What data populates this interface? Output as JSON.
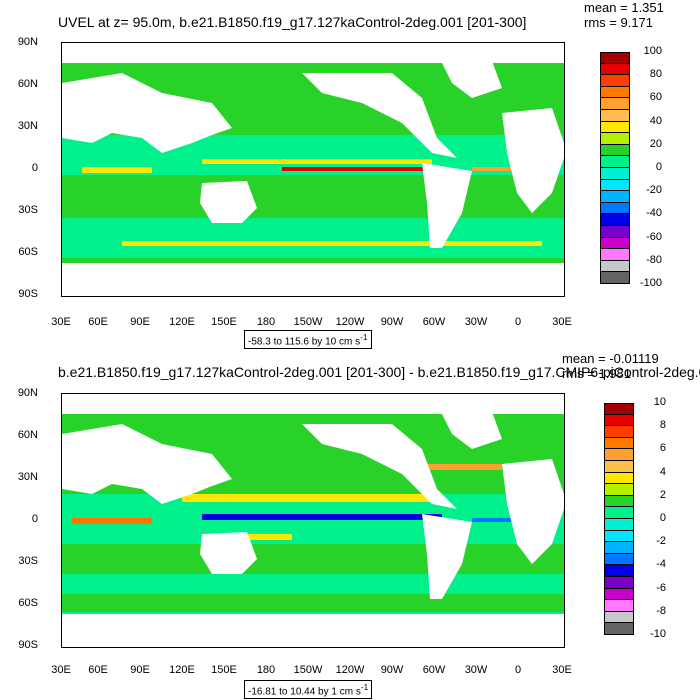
{
  "chart_data": [
    {
      "type": "heatmap",
      "title": "UVEL at z=  95.0m, b.e21.B1850.f19_g17.127kaControl-2deg.001 [201-300]",
      "stats": {
        "mean": "mean = 1.351",
        "rms": "rms = 9.171"
      },
      "range_label": "-58.3 to 115.6 by 10 cm s",
      "range_sup": "-1",
      "y_ticks": [
        "90N",
        "60N",
        "30N",
        "0",
        "30S",
        "60S",
        "90S"
      ],
      "x_ticks": [
        "30E",
        "60E",
        "90E",
        "120E",
        "150E",
        "180",
        "150W",
        "120W",
        "90W",
        "60W",
        "30W",
        "0",
        "30E"
      ],
      "colorbar_labels": [
        "100",
        "80",
        "60",
        "40",
        "20",
        "0",
        "-20",
        "-40",
        "-60",
        "-80",
        "-100"
      ],
      "colorbar_colors": [
        "#a50000",
        "#e60000",
        "#ff3c00",
        "#ff7800",
        "#ffa030",
        "#ffbe50",
        "#ffe600",
        "#b4f000",
        "#28d228",
        "#00f08c",
        "#00f0d2",
        "#00e6ff",
        "#00b4ff",
        "#0078ff",
        "#0000e6",
        "#7800c8",
        "#c800c8",
        "#ff78ff",
        "#c8c8c8",
        "#646464"
      ]
    },
    {
      "type": "heatmap",
      "title": "b.e21.B1850.f19_g17.127kaControl-2deg.001 [201-300] - b.e21.B1850.f19_g17.CMIP6-piControl-2deg.0",
      "stats": {
        "mean": "mean = -0.01119",
        "rms": "rms = 1.981"
      },
      "range_label": "-16.81 to 10.44 by 1 cm s",
      "range_sup": "-1",
      "y_ticks": [
        "90N",
        "60N",
        "30N",
        "0",
        "30S",
        "60S",
        "90S"
      ],
      "x_ticks": [
        "30E",
        "60E",
        "90E",
        "120E",
        "150E",
        "180",
        "150W",
        "120W",
        "90W",
        "60W",
        "30W",
        "0",
        "30E"
      ],
      "colorbar_labels": [
        "10",
        "8",
        "6",
        "4",
        "2",
        "0",
        "-2",
        "-4",
        "-6",
        "-8",
        "-10"
      ],
      "colorbar_colors": [
        "#a50000",
        "#e60000",
        "#ff3c00",
        "#ff7800",
        "#ffa030",
        "#ffbe50",
        "#ffe600",
        "#b4f000",
        "#28d228",
        "#00f08c",
        "#00f0d2",
        "#00e6ff",
        "#00b4ff",
        "#0078ff",
        "#0000e6",
        "#7800c8",
        "#c800c8",
        "#ff78ff",
        "#c8c8c8",
        "#646464"
      ]
    }
  ]
}
